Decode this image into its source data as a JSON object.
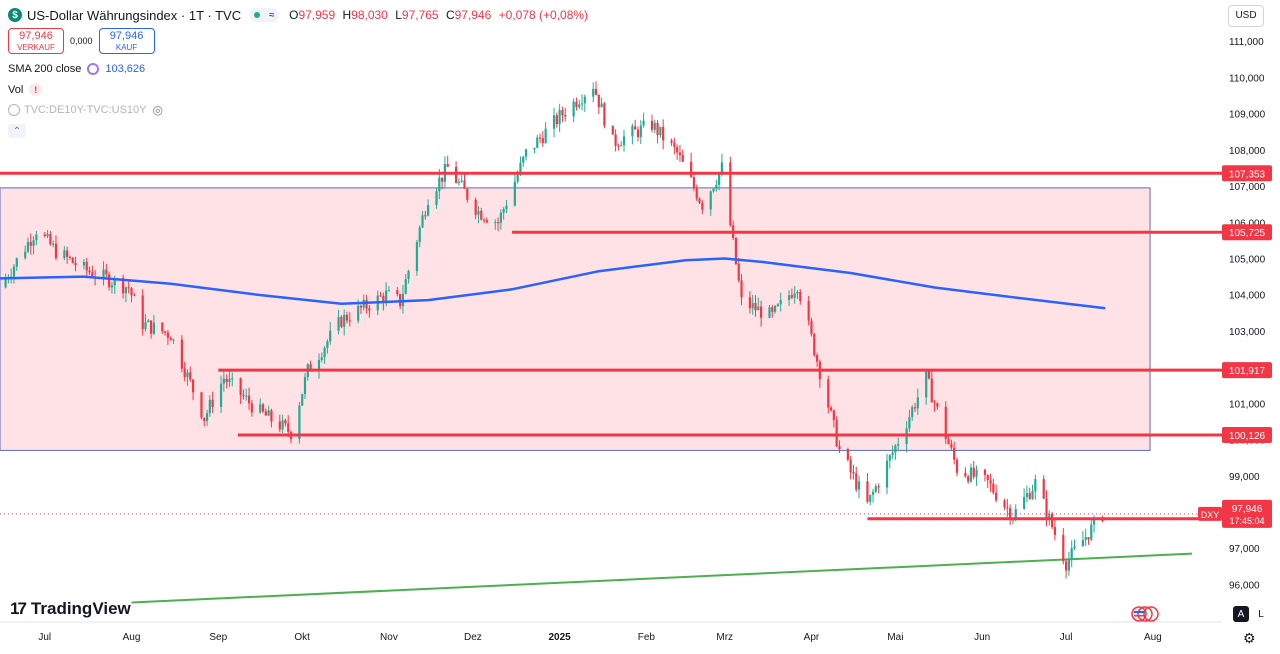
{
  "header": {
    "symbol_badge": "$",
    "title": "US-Dollar Währungsindex · 1T · TVC",
    "dot_icons": [
      "green-dot-icon",
      "wave-icon"
    ],
    "ohlc": [
      {
        "k": "O",
        "v": "97,959"
      },
      {
        "k": "H",
        "v": "98,030"
      },
      {
        "k": "L",
        "v": "97,765"
      },
      {
        "k": "C",
        "v": "97,946"
      }
    ],
    "change": "+0,078 (+0,08%)",
    "sell": {
      "value": "97,946",
      "label": "VERKAUF"
    },
    "spread": "0,000",
    "buy": {
      "value": "97,946",
      "label": "KAUF"
    },
    "currency": "USD"
  },
  "indicators": {
    "sma_label": "SMA 200 close",
    "sma_value": "103,626",
    "vol_label": "Vol",
    "vol_warn": "!",
    "compare_label": "TVC:DE10Y-TVC:US10Y"
  },
  "brand": {
    "name": "TradingView",
    "mark": "17"
  },
  "axis_buttons": {
    "auto": "A",
    "log": "L"
  },
  "colors": {
    "up": "#22ab94",
    "down": "#f23645",
    "sma": "#2962ff",
    "hline": "#f23645",
    "trend": "#4caf50",
    "zone_fill": "#ffe2e5",
    "zone_border": "#5c6bc0"
  },
  "chart_data": {
    "type": "candlestick",
    "y_ticks": [
      "111,000",
      "110,000",
      "109,000",
      "108,000",
      "107,000",
      "106,000",
      "105,000",
      "104,000",
      "103,000",
      "102,000",
      "101,000",
      "100,000",
      "99,000",
      "98,000",
      "97,000",
      "96,000"
    ],
    "x_ticks": [
      "Jul",
      "Aug",
      "Sep",
      "Okt",
      "Nov",
      "Dez",
      "2025",
      "Feb",
      "Mrz",
      "Apr",
      "Mai",
      "Jun",
      "Jul",
      "Aug"
    ],
    "ylim": [
      95.9,
      111.2
    ],
    "horizontal_levels": [
      {
        "label": "107,353",
        "value": 107.353,
        "from": "2024-06-15"
      },
      {
        "label": "105,725",
        "value": 105.725,
        "from": "2024-12-15"
      },
      {
        "label": "101,917",
        "value": 101.917,
        "from": "2024-09-01"
      },
      {
        "label": "100,126",
        "value": 100.126,
        "from": "2024-09-08"
      },
      {
        "label": "97,811",
        "value": 97.811,
        "from": "2025-04-21"
      }
    ],
    "last_price": {
      "symbol": "DXY",
      "value": "97,946",
      "countdown": "17:45:04"
    },
    "zone": {
      "from": "2024-06-15",
      "to": "2025-07-31",
      "high": 106.95,
      "low": 99.7
    },
    "trendline": {
      "start": {
        "date": "2024-08-01",
        "value": 95.5
      },
      "end": {
        "date": "2025-08-15",
        "value": 96.85
      }
    },
    "sma_200": [
      {
        "date": "2024-06-15",
        "value": 104.45
      },
      {
        "date": "2024-07-15",
        "value": 104.5
      },
      {
        "date": "2024-08-15",
        "value": 104.3
      },
      {
        "date": "2024-09-15",
        "value": 104.0
      },
      {
        "date": "2024-10-15",
        "value": 103.75
      },
      {
        "date": "2024-11-15",
        "value": 103.85
      },
      {
        "date": "2024-12-15",
        "value": 104.15
      },
      {
        "date": "2025-01-15",
        "value": 104.65
      },
      {
        "date": "2025-02-15",
        "value": 104.95
      },
      {
        "date": "2025-03-01",
        "value": 105.0
      },
      {
        "date": "2025-03-15",
        "value": 104.9
      },
      {
        "date": "2025-04-15",
        "value": 104.6
      },
      {
        "date": "2025-05-15",
        "value": 104.2
      },
      {
        "date": "2025-06-15",
        "value": 103.9
      },
      {
        "date": "2025-07-15",
        "value": 103.626
      }
    ],
    "close_path": [
      {
        "date": "2024-06-15",
        "value": 104.2
      },
      {
        "date": "2024-06-28",
        "value": 105.8
      },
      {
        "date": "2024-07-05",
        "value": 105.2
      },
      {
        "date": "2024-07-15",
        "value": 104.7
      },
      {
        "date": "2024-07-31",
        "value": 104.2
      },
      {
        "date": "2024-08-05",
        "value": 103.2
      },
      {
        "date": "2024-08-15",
        "value": 102.9
      },
      {
        "date": "2024-08-27",
        "value": 100.6
      },
      {
        "date": "2024-09-03",
        "value": 101.7
      },
      {
        "date": "2024-09-15",
        "value": 100.8
      },
      {
        "date": "2024-09-27",
        "value": 100.2
      },
      {
        "date": "2024-10-03",
        "value": 101.9
      },
      {
        "date": "2024-10-15",
        "value": 103.3
      },
      {
        "date": "2024-10-31",
        "value": 104.0
      },
      {
        "date": "2024-11-05",
        "value": 103.8
      },
      {
        "date": "2024-11-15",
        "value": 106.7
      },
      {
        "date": "2024-11-22",
        "value": 107.5
      },
      {
        "date": "2024-12-03",
        "value": 106.3
      },
      {
        "date": "2024-12-10",
        "value": 106.0
      },
      {
        "date": "2024-12-20",
        "value": 107.9
      },
      {
        "date": "2025-01-02",
        "value": 109.0
      },
      {
        "date": "2025-01-13",
        "value": 109.8
      },
      {
        "date": "2025-01-20",
        "value": 108.2
      },
      {
        "date": "2025-02-03",
        "value": 108.7
      },
      {
        "date": "2025-02-12",
        "value": 107.9
      },
      {
        "date": "2025-02-21",
        "value": 106.5
      },
      {
        "date": "2025-02-28",
        "value": 107.5
      },
      {
        "date": "2025-03-07",
        "value": 103.8
      },
      {
        "date": "2025-03-18",
        "value": 103.4
      },
      {
        "date": "2025-03-27",
        "value": 104.3
      },
      {
        "date": "2025-04-03",
        "value": 102.2
      },
      {
        "date": "2025-04-11",
        "value": 99.7
      },
      {
        "date": "2025-04-21",
        "value": 98.2
      },
      {
        "date": "2025-05-01",
        "value": 99.8
      },
      {
        "date": "2025-05-12",
        "value": 101.7
      },
      {
        "date": "2025-05-23",
        "value": 99.2
      },
      {
        "date": "2025-06-03",
        "value": 98.8
      },
      {
        "date": "2025-06-12",
        "value": 97.9
      },
      {
        "date": "2025-06-20",
        "value": 98.8
      },
      {
        "date": "2025-07-01",
        "value": 96.6
      },
      {
        "date": "2025-07-14",
        "value": 97.946
      }
    ]
  }
}
